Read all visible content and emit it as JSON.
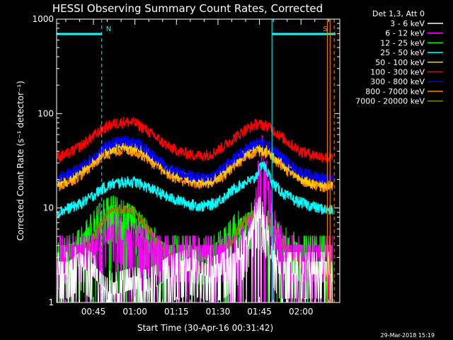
{
  "chart_data": {
    "type": "line",
    "title": "HESSI Observing Summary Count Rates, Corrected",
    "xlabel": "Start Time (30-Apr-16 00:31:42)",
    "ylabel": "Corrected Count Rate (s⁻¹ detector⁻¹)",
    "yscale": "log",
    "ylim": [
      1,
      1000
    ],
    "xlim_minutes": [
      31.7,
      134.0
    ],
    "x_ticks": [
      {
        "minute": 45,
        "label": "00:45"
      },
      {
        "minute": 60,
        "label": "01:00"
      },
      {
        "minute": 75,
        "label": "01:15"
      },
      {
        "minute": 90,
        "label": "01:30"
      },
      {
        "minute": 105,
        "label": "01:45"
      },
      {
        "minute": 120,
        "label": "02:00"
      }
    ],
    "y_ticks": [
      {
        "value": 1,
        "label": "1"
      },
      {
        "value": 10,
        "label": "10"
      },
      {
        "value": 100,
        "label": "100"
      },
      {
        "value": 1000,
        "label": "1000"
      }
    ],
    "legend_header": "Det 1,3, Att 0",
    "legend_placement": "outside-right",
    "series": [
      {
        "name": "3 - 6 keV",
        "color": "#ffffff",
        "kind": "spiky",
        "values": [
          [
            32,
            2
          ],
          [
            36,
            2
          ],
          [
            40,
            2.5
          ],
          [
            44,
            2
          ],
          [
            48,
            1.5
          ],
          [
            52,
            1.2
          ],
          [
            56,
            1.3
          ],
          [
            60,
            1.4
          ],
          [
            64,
            1.3
          ],
          [
            68,
            1.5
          ],
          [
            72,
            1.8
          ],
          [
            76,
            2
          ],
          [
            80,
            2.2
          ],
          [
            84,
            2
          ],
          [
            88,
            1.8
          ],
          [
            92,
            2
          ],
          [
            96,
            2.5
          ],
          [
            100,
            3.5
          ],
          [
            103,
            6
          ],
          [
            105,
            8
          ],
          [
            107,
            6
          ],
          [
            109,
            3
          ],
          [
            112,
            2
          ],
          [
            116,
            2
          ],
          [
            120,
            2
          ],
          [
            124,
            2
          ],
          [
            128,
            2
          ],
          [
            131,
            2
          ]
        ]
      },
      {
        "name": "6 - 12 keV",
        "color": "#ff00ff",
        "kind": "spiky",
        "values": [
          [
            32,
            3
          ],
          [
            36,
            3
          ],
          [
            40,
            3
          ],
          [
            44,
            3
          ],
          [
            48,
            4
          ],
          [
            52,
            5
          ],
          [
            56,
            4.5
          ],
          [
            60,
            4
          ],
          [
            64,
            3.5
          ],
          [
            68,
            3
          ],
          [
            72,
            3
          ],
          [
            76,
            3
          ],
          [
            80,
            3
          ],
          [
            84,
            3
          ],
          [
            88,
            3
          ],
          [
            92,
            3
          ],
          [
            96,
            3
          ],
          [
            100,
            4
          ],
          [
            103,
            8
          ],
          [
            105,
            25
          ],
          [
            106,
            35
          ],
          [
            108,
            15
          ],
          [
            110,
            6
          ],
          [
            114,
            3
          ],
          [
            118,
            3
          ],
          [
            122,
            3
          ],
          [
            126,
            3
          ],
          [
            131,
            3
          ]
        ]
      },
      {
        "name": "12 - 25 keV",
        "color": "#00ff00",
        "kind": "spiky",
        "values": [
          [
            32,
            2.5
          ],
          [
            36,
            3
          ],
          [
            40,
            3.5
          ],
          [
            44,
            5
          ],
          [
            48,
            7
          ],
          [
            52,
            8
          ],
          [
            56,
            7
          ],
          [
            60,
            6
          ],
          [
            64,
            4.5
          ],
          [
            68,
            3.5
          ],
          [
            72,
            3
          ],
          [
            76,
            3
          ],
          [
            80,
            3
          ],
          [
            84,
            2.8
          ],
          [
            88,
            3
          ],
          [
            92,
            3.5
          ],
          [
            96,
            5
          ],
          [
            100,
            6.5
          ],
          [
            104,
            7
          ],
          [
            108,
            5.5
          ],
          [
            112,
            4
          ],
          [
            116,
            3.5
          ],
          [
            120,
            3
          ],
          [
            124,
            3
          ],
          [
            128,
            3
          ],
          [
            131,
            3
          ]
        ]
      },
      {
        "name": "25 - 50 keV",
        "color": "#00ffff",
        "kind": "band",
        "values": [
          [
            32,
            9
          ],
          [
            36,
            10
          ],
          [
            40,
            11
          ],
          [
            44,
            13
          ],
          [
            48,
            16
          ],
          [
            52,
            18
          ],
          [
            56,
            19
          ],
          [
            60,
            19
          ],
          [
            64,
            17
          ],
          [
            68,
            15
          ],
          [
            72,
            13
          ],
          [
            76,
            12
          ],
          [
            80,
            11
          ],
          [
            84,
            10.5
          ],
          [
            88,
            11
          ],
          [
            92,
            13
          ],
          [
            96,
            16
          ],
          [
            100,
            19
          ],
          [
            103,
            20
          ],
          [
            105,
            26
          ],
          [
            106,
            30
          ],
          [
            108,
            24
          ],
          [
            110,
            18
          ],
          [
            114,
            14
          ],
          [
            118,
            12
          ],
          [
            122,
            11
          ],
          [
            126,
            10
          ],
          [
            131,
            9.5
          ]
        ]
      },
      {
        "name": "50 - 100 keV",
        "color": "#ffcc00",
        "kind": "band",
        "values": [
          [
            32,
            18
          ],
          [
            36,
            20
          ],
          [
            40,
            24
          ],
          [
            44,
            30
          ],
          [
            48,
            38
          ],
          [
            52,
            44
          ],
          [
            56,
            46
          ],
          [
            60,
            44
          ],
          [
            64,
            38
          ],
          [
            68,
            30
          ],
          [
            72,
            25
          ],
          [
            76,
            22
          ],
          [
            80,
            20
          ],
          [
            84,
            19
          ],
          [
            88,
            20
          ],
          [
            92,
            24
          ],
          [
            96,
            30
          ],
          [
            100,
            38
          ],
          [
            104,
            44
          ],
          [
            108,
            40
          ],
          [
            112,
            32
          ],
          [
            116,
            25
          ],
          [
            120,
            21
          ],
          [
            124,
            19
          ],
          [
            128,
            18
          ],
          [
            131,
            18
          ]
        ]
      },
      {
        "name": "100 - 300 keV",
        "color": "#ff0000",
        "kind": "band",
        "values": [
          [
            32,
            35
          ],
          [
            36,
            38
          ],
          [
            40,
            45
          ],
          [
            44,
            55
          ],
          [
            48,
            68
          ],
          [
            52,
            78
          ],
          [
            56,
            82
          ],
          [
            60,
            80
          ],
          [
            64,
            68
          ],
          [
            68,
            55
          ],
          [
            72,
            45
          ],
          [
            76,
            40
          ],
          [
            80,
            37
          ],
          [
            84,
            36
          ],
          [
            88,
            38
          ],
          [
            92,
            45
          ],
          [
            96,
            56
          ],
          [
            100,
            68
          ],
          [
            104,
            78
          ],
          [
            108,
            74
          ],
          [
            112,
            60
          ],
          [
            116,
            48
          ],
          [
            120,
            40
          ],
          [
            124,
            37
          ],
          [
            128,
            35
          ],
          [
            131,
            34
          ]
        ]
      },
      {
        "name": "300 - 800 keV",
        "color": "#0000ff",
        "kind": "band",
        "values": [
          [
            32,
            21
          ],
          [
            36,
            23
          ],
          [
            40,
            27
          ],
          [
            44,
            33
          ],
          [
            48,
            42
          ],
          [
            52,
            49
          ],
          [
            56,
            52
          ],
          [
            60,
            50
          ],
          [
            64,
            42
          ],
          [
            68,
            33
          ],
          [
            72,
            27
          ],
          [
            76,
            24
          ],
          [
            80,
            22
          ],
          [
            84,
            21
          ],
          [
            88,
            22
          ],
          [
            92,
            27
          ],
          [
            96,
            34
          ],
          [
            100,
            42
          ],
          [
            104,
            50
          ],
          [
            108,
            47
          ],
          [
            112,
            37
          ],
          [
            116,
            29
          ],
          [
            120,
            24
          ],
          [
            124,
            22
          ],
          [
            128,
            21
          ],
          [
            131,
            21
          ]
        ]
      },
      {
        "name": "800 - 7000 keV",
        "color": "#ff8800",
        "kind": "band",
        "values": [
          [
            32,
            17
          ],
          [
            36,
            19
          ],
          [
            40,
            22
          ],
          [
            44,
            28
          ],
          [
            48,
            35
          ],
          [
            52,
            40
          ],
          [
            56,
            42
          ],
          [
            60,
            40
          ],
          [
            64,
            35
          ],
          [
            68,
            28
          ],
          [
            72,
            23
          ],
          [
            76,
            20
          ],
          [
            80,
            19
          ],
          [
            84,
            18
          ],
          [
            88,
            19
          ],
          [
            92,
            22
          ],
          [
            96,
            28
          ],
          [
            100,
            35
          ],
          [
            104,
            41
          ],
          [
            108,
            38
          ],
          [
            112,
            30
          ],
          [
            116,
            24
          ],
          [
            120,
            20
          ],
          [
            124,
            18
          ],
          [
            128,
            17
          ],
          [
            131,
            17
          ]
        ]
      },
      {
        "name": "7000 - 20000 keV",
        "color": "#888800",
        "kind": "band",
        "values": [
          [
            32,
            2
          ],
          [
            36,
            2.3
          ],
          [
            40,
            3
          ],
          [
            44,
            4.5
          ],
          [
            48,
            7
          ],
          [
            52,
            9.5
          ],
          [
            56,
            10
          ],
          [
            60,
            9
          ],
          [
            64,
            6.5
          ],
          [
            68,
            4.5
          ],
          [
            72,
            3.2
          ],
          [
            76,
            2.6
          ],
          [
            80,
            2.3
          ],
          [
            84,
            2.2
          ],
          [
            88,
            2.5
          ],
          [
            92,
            3.5
          ],
          [
            96,
            5
          ],
          [
            100,
            7.5
          ],
          [
            104,
            9
          ],
          [
            108,
            7.5
          ],
          [
            112,
            5
          ],
          [
            116,
            3.3
          ],
          [
            120,
            2.6
          ],
          [
            124,
            2.2
          ],
          [
            128,
            2
          ],
          [
            131,
            2
          ]
        ]
      }
    ],
    "annotations": [
      {
        "label": "N",
        "color": "#00ffff",
        "minute": 48.0,
        "style": "dashed"
      },
      {
        "label": "S",
        "color": "#ff8800",
        "minute": 130.5,
        "style": "solid"
      }
    ],
    "saa_bars": [
      {
        "from": 31.7,
        "to": 48.0,
        "color": "#00ffff"
      },
      {
        "from": 109.5,
        "to": 132.5,
        "color": "#00ffff"
      }
    ],
    "marker_lines": [
      {
        "minute": 109.5,
        "color": "#00ffff",
        "style": "solid"
      },
      {
        "minute": 132.0,
        "color": "#ff8800",
        "style": "dashed"
      },
      {
        "minute": 129.5,
        "color": "#ff8800",
        "style": "solid"
      }
    ]
  },
  "footer_timestamp": "29-Mar-2018 15:19"
}
